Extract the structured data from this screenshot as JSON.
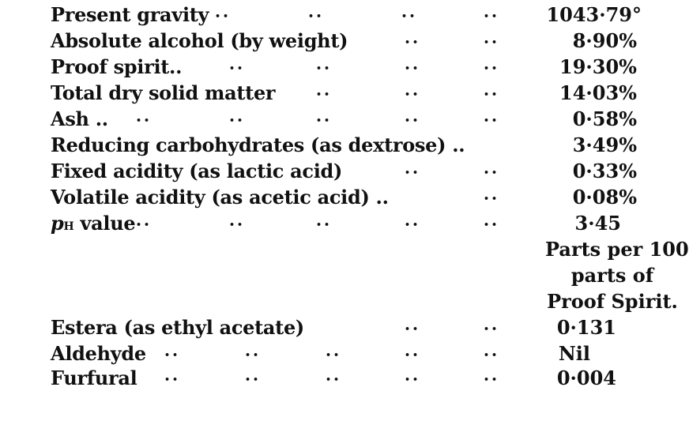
{
  "rows": [
    {
      "label": "Present gravity",
      "value": "1043·79°"
    },
    {
      "label": "Absolute alcohol (by weight)",
      "value": "8·90%"
    },
    {
      "label": "Proof spirit..",
      "value": "19·30%"
    },
    {
      "label": "Total dry solid matter",
      "value": "14·03%"
    },
    {
      "label": "Ash ..",
      "value": "0·58%"
    },
    {
      "label": "Reducing carbohydrates (as dextrose) ..",
      "value": "3·49%"
    },
    {
      "label": "Fixed acidity (as lactic acid)",
      "value": "0·33%"
    },
    {
      "label": "Volatile acidity (as acetic acid) ..",
      "value": "0·08%"
    },
    {
      "label_p": "p",
      "label_h": "H",
      "label_rest": " value",
      "value": "3·45"
    }
  ],
  "unit_header": [
    "Parts per 100",
    "parts of",
    "Proof Spirit."
  ],
  "rows2": [
    {
      "label": "Estera (as ethyl acetate)",
      "value": "0·131"
    },
    {
      "label": "Aldehyde",
      "value": "Nil"
    },
    {
      "label": "Furfural",
      "value": "0·004"
    }
  ]
}
